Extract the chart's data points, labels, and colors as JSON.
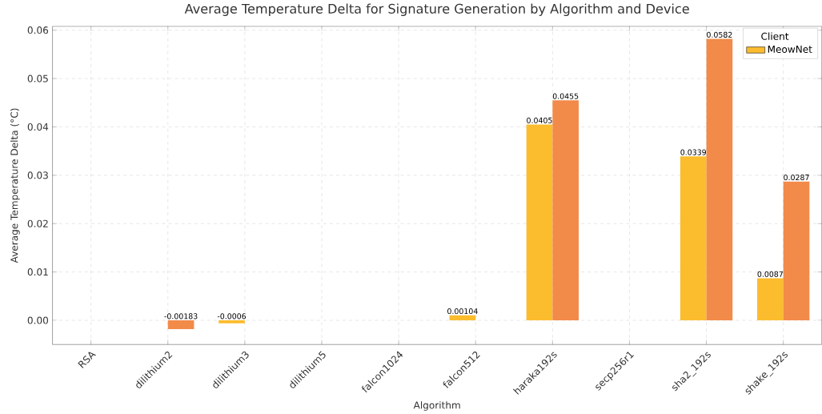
{
  "chart_data": {
    "type": "bar",
    "title": "Average Temperature Delta for Signature Generation by Algorithm and Device",
    "xlabel": "Algorithm",
    "ylabel": "Average Temperature Delta (°C)",
    "legend_title": "Client",
    "categories": [
      "RSA",
      "dilithium2",
      "dilithium3",
      "dilithium5",
      "falcon1024",
      "falcon512",
      "haraka192s",
      "secp256r1",
      "sha2_192s",
      "shake_192s"
    ],
    "series": [
      {
        "name": "MeowNet",
        "color": "#fbbc2e",
        "values": [
          null,
          null,
          -0.0006,
          null,
          null,
          0.00104,
          0.0405,
          null,
          0.0339,
          0.0087
        ],
        "value_labels": [
          null,
          null,
          "-0.0006",
          null,
          null,
          "0.00104",
          "0.0405",
          null,
          "0.0339",
          "0.0087"
        ]
      },
      {
        "color": "#f28a4a",
        "values": [
          null,
          -0.00183,
          null,
          null,
          null,
          null,
          0.0455,
          null,
          0.0582,
          0.0287
        ],
        "value_labels": [
          null,
          "-0.00183",
          null,
          null,
          null,
          null,
          "0.0455",
          null,
          "0.0582",
          "0.0287"
        ]
      }
    ],
    "ylim": [
      -0.005,
      0.0608
    ],
    "yticks": [
      {
        "value": 0,
        "label": "0.00"
      },
      {
        "value": 0.01,
        "label": "0.01"
      },
      {
        "value": 0.02,
        "label": "0.02"
      },
      {
        "value": 0.03,
        "label": "0.03"
      },
      {
        "value": 0.04,
        "label": "0.04"
      },
      {
        "value": 0.05,
        "label": "0.05"
      },
      {
        "value": 0.06,
        "label": "0.06"
      }
    ],
    "grid": true,
    "legend": "top right"
  }
}
